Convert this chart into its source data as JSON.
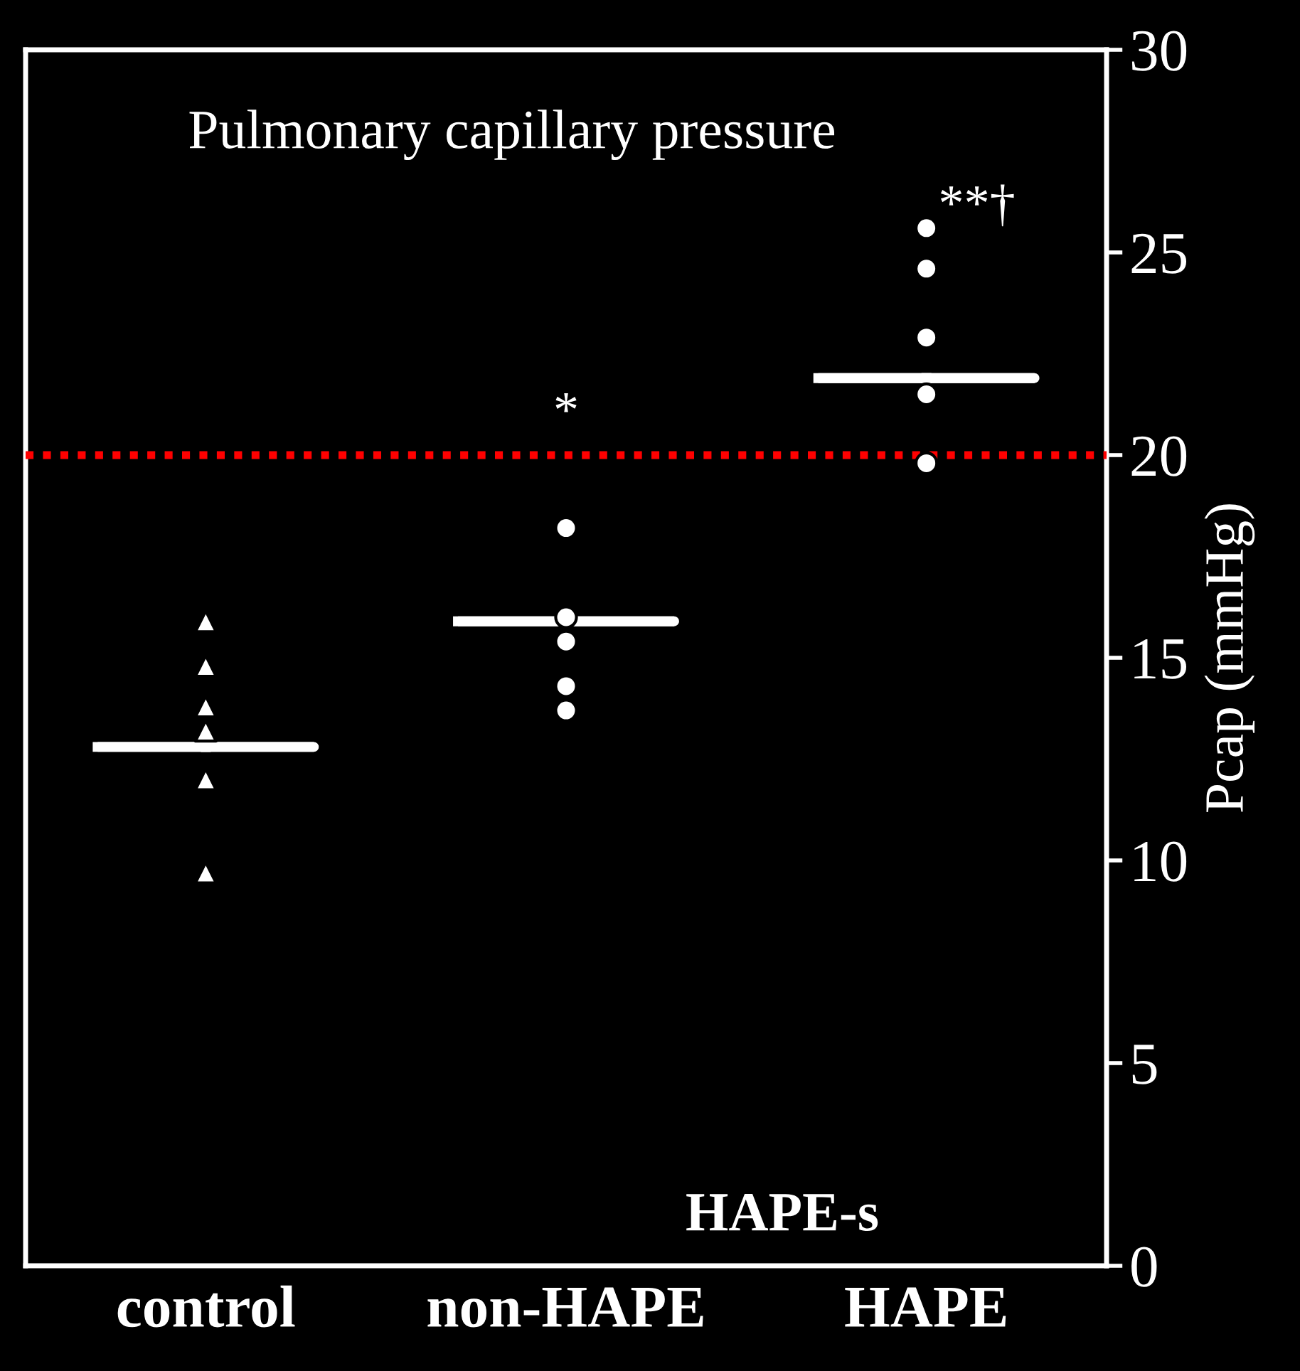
{
  "chart_data": {
    "type": "scatter",
    "title": "Pulmonary capillary pressure",
    "ylabel": "Pcap (mmHg)",
    "categories": [
      "control",
      "non-HAPE",
      "HAPE"
    ],
    "series": [
      {
        "marker": "triangle",
        "color": "#ffffff",
        "x": [
          "control",
          "control",
          "control",
          "control",
          "control",
          "control"
        ],
        "values": [
          15.9,
          14.8,
          13.8,
          13.2,
          12.0,
          9.7
        ]
      },
      {
        "marker": "circle",
        "color": "#ffffff",
        "x": [
          "non-HAPE",
          "non-HAPE",
          "non-HAPE",
          "non-HAPE",
          "non-HAPE"
        ],
        "values": [
          18.2,
          16.0,
          15.4,
          14.3,
          13.7
        ]
      },
      {
        "marker": "circle",
        "color": "#ffffff",
        "x": [
          "HAPE",
          "HAPE",
          "HAPE",
          "HAPE",
          "HAPE"
        ],
        "values": [
          25.6,
          24.6,
          22.9,
          21.5,
          19.8
        ]
      },
      {
        "type": "box",
        "color": "#ffffff",
        "boxes": [
          {
            "low": 12.8,
            "q1": 12.8,
            "median": 12.8,
            "q3": 12.8,
            "high": 12.8
          },
          {
            "low": 15.9,
            "q1": 15.9,
            "median": 15.9,
            "q3": 15.9,
            "high": 15.9
          },
          {
            "low": 21.9,
            "q1": 21.9,
            "median": 21.9,
            "q3": 21.9,
            "high": 21.9
          }
        ]
      }
    ],
    "ylim": [
      0,
      30
    ],
    "yticks": [
      0,
      5,
      10,
      15,
      20,
      25,
      30
    ],
    "ref_lines": [
      {
        "axis": "y",
        "value": 20,
        "color": "#ff0000",
        "line_style": "dotted"
      }
    ],
    "annotations": [
      "*",
      "**†",
      "HAPE-s"
    ],
    "grid": false,
    "legend": false
  }
}
